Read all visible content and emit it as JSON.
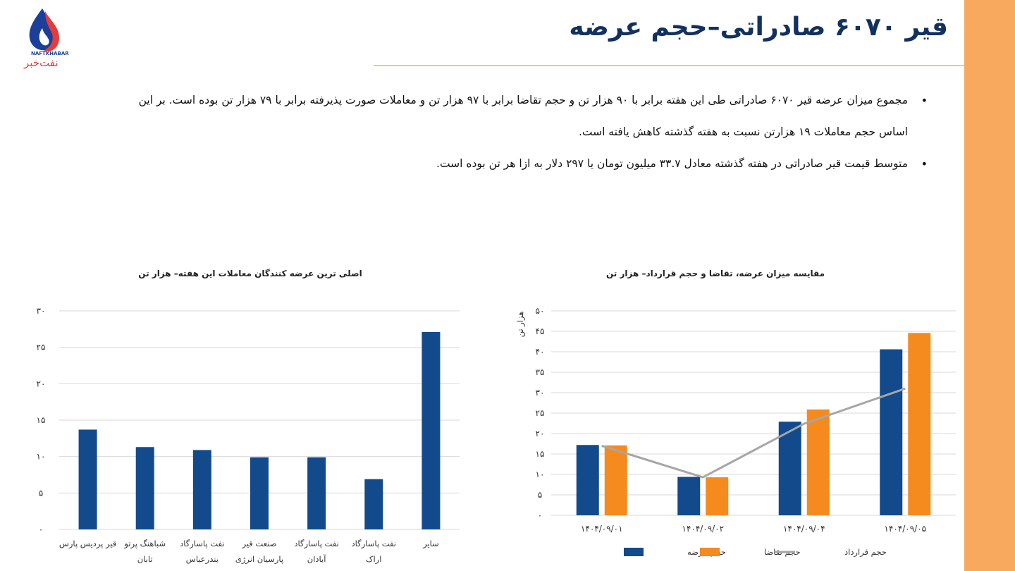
{
  "logo": {
    "text_en": "NAFTKHABAR",
    "text_fa": "نفت‌خبر"
  },
  "header": {
    "title": "قیر ۶۰۷۰ صادراتی–حجم عرضه"
  },
  "bullets": [
    "مجموع میزان عرضه قیر ۶۰۷۰ صادراتی طی این هفته برابر با ۹۰ هزار تن و حجم تقاضا برابر با ۹۷ هزار تن و معاملات صورت پذیرفته برابر با ۷۹ هزار تن بوده است. بر این اساس حجم معاملات ۱۹ هزارتن نسبت به هفته گذشته کاهش یافته است.",
    "متوسط قیمت قیر صادراتی در هفته گذشته معادل ۳۳.۷ میلیون تومان یا ۲۹۷ دلار به ازا هر تن بوده است."
  ],
  "colors": {
    "blue": "#124a8c",
    "orange": "#f58a1f",
    "gray": "#a6a6a6",
    "sidebar": "#f8a95d"
  },
  "chart_data": [
    {
      "type": "bar",
      "title": "اصلی ترین عرضه کنندگان معاملات این هفته– هزار تن",
      "categories": [
        [
          "قیر پردیس پارس"
        ],
        [
          "شباهنگ پرتو",
          "تابان"
        ],
        [
          "نفت پاسارگاد",
          "بندرعباس"
        ],
        [
          "صنعت قیر",
          "پارسیان انرژی"
        ],
        [
          "نفت پاسارگاد",
          "آبادان"
        ],
        [
          "نفت پاسارگاد",
          "اراک"
        ],
        [
          "سایر"
        ]
      ],
      "values": [
        13.7,
        11.3,
        10.9,
        9.9,
        9.9,
        6.9,
        27.1
      ],
      "ylim": [
        0,
        30
      ],
      "yticks": [
        0,
        5,
        10,
        15,
        20,
        25,
        30
      ],
      "ytick_labels": [
        "۰",
        "۵",
        "۱۰",
        "۱۵",
        "۲۰",
        "۲۵",
        "۳۰"
      ],
      "grid": true
    },
    {
      "type": "bar",
      "title": "مقایسه میزان عرضه، تقاضا و حجم قرارداد–  هزار تن",
      "ylabel": "هزار تن",
      "categories": [
        "۱۴۰۴/۰۹/۰۱",
        "۱۴۰۴/۰۹/۰۲",
        "۱۴۰۴/۰۹/۰۴",
        "۱۴۰۴/۰۹/۰۵"
      ],
      "series": [
        {
          "name": "حجم عرضه",
          "kind": "bar",
          "values": [
            17.2,
            9.4,
            22.9,
            40.6
          ]
        },
        {
          "name": "حجم تقاضا",
          "kind": "bar",
          "values": [
            17.1,
            9.3,
            25.9,
            44.6
          ]
        },
        {
          "name": "حجم قرارداد",
          "kind": "line",
          "values": [
            17.0,
            9.3,
            22.4,
            31.0
          ]
        }
      ],
      "ylim": [
        0,
        50
      ],
      "yticks": [
        0,
        5,
        10,
        15,
        20,
        25,
        30,
        35,
        40,
        45,
        50
      ],
      "ytick_labels": [
        "۰",
        "۵",
        "۱۰",
        "۱۵",
        "۲۰",
        "۲۵",
        "۳۰",
        "۳۵",
        "۴۰",
        "۴۵",
        "۵۰"
      ],
      "legend": "bottom",
      "grid": true
    }
  ]
}
